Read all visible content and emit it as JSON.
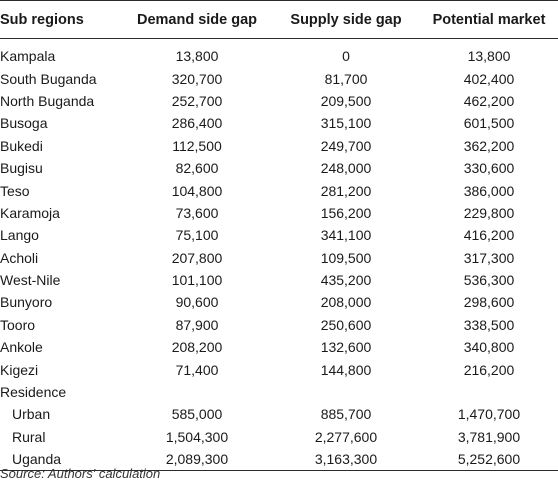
{
  "table": {
    "headers": [
      "Sub regions",
      "Demand side gap",
      "Supply side gap",
      "Potential market"
    ],
    "rows": [
      {
        "region": "Kampala",
        "demand": "13,800",
        "supply": "0",
        "potential": "13,800"
      },
      {
        "region": "South Buganda",
        "demand": "320,700",
        "supply": "81,700",
        "potential": "402,400"
      },
      {
        "region": "North Buganda",
        "demand": "252,700",
        "supply": "209,500",
        "potential": "462,200"
      },
      {
        "region": "Busoga",
        "demand": "286,400",
        "supply": "315,100",
        "potential": "601,500"
      },
      {
        "region": "Bukedi",
        "demand": "112,500",
        "supply": "249,700",
        "potential": "362,200"
      },
      {
        "region": "Bugisu",
        "demand": "82,600",
        "supply": "248,000",
        "potential": "330,600"
      },
      {
        "region": "Teso",
        "demand": "104,800",
        "supply": "281,200",
        "potential": "386,000"
      },
      {
        "region": "Karamoja",
        "demand": "73,600",
        "supply": "156,200",
        "potential": "229,800"
      },
      {
        "region": "Lango",
        "demand": "75,100",
        "supply": "341,100",
        "potential": "416,200"
      },
      {
        "region": "Acholi",
        "demand": "207,800",
        "supply": "109,500",
        "potential": "317,300"
      },
      {
        "region": "West-Nile",
        "demand": "101,100",
        "supply": "435,200",
        "potential": "536,300"
      },
      {
        "region": "Bunyoro",
        "demand": "90,600",
        "supply": "208,000",
        "potential": "298,600"
      },
      {
        "region": "Tooro",
        "demand": "87,900",
        "supply": "250,600",
        "potential": "338,500"
      },
      {
        "region": "Ankole",
        "demand": "208,200",
        "supply": "132,600",
        "potential": "340,800"
      },
      {
        "region": "Kigezi",
        "demand": "71,400",
        "supply": "144,800",
        "potential": "216,200"
      }
    ],
    "residence_label": "Residence",
    "residence_rows": [
      {
        "region": "Urban",
        "demand": "585,000",
        "supply": "885,700",
        "potential": "1,470,700"
      },
      {
        "region": "Rural",
        "demand": "1,504,300",
        "supply": "2,277,600",
        "potential": "3,781,900"
      },
      {
        "region": "Uganda",
        "demand": "2,089,300",
        "supply": "3,163,300",
        "potential": "5,252,600"
      }
    ]
  },
  "source_note": "Source: Authors' calculation"
}
